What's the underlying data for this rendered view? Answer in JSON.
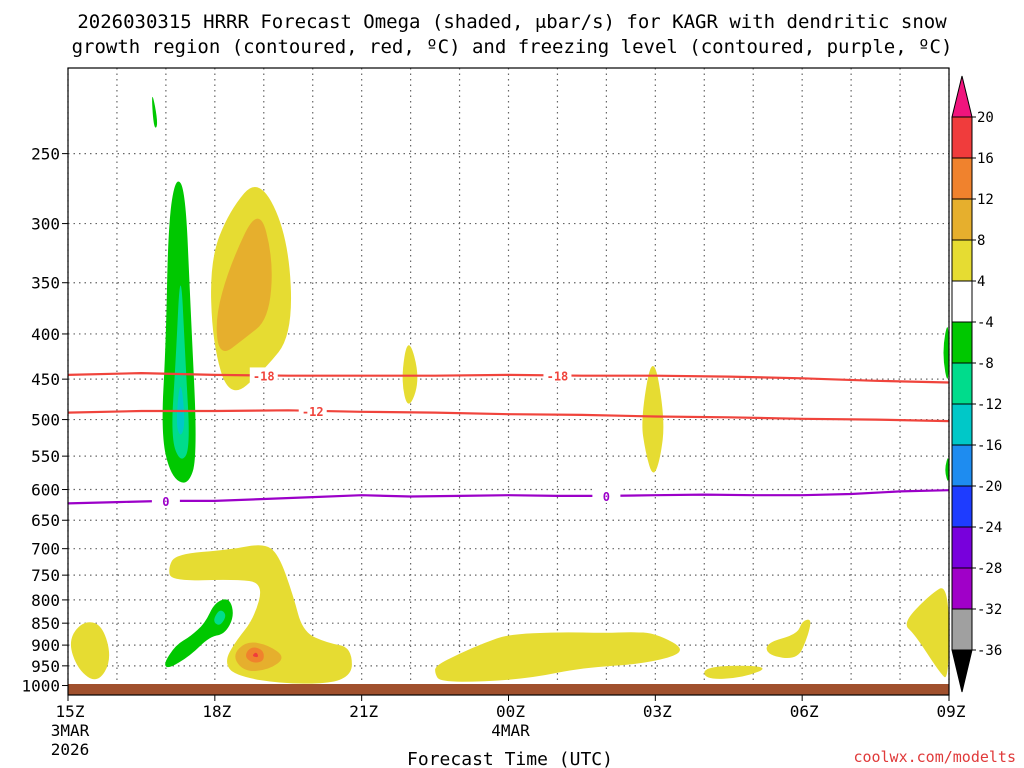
{
  "chart_data": {
    "type": "time-height cross-section",
    "title_line1": "2026030315 HRRR Forecast Omega (shaded, μbar/s) for KAGR with dendritic snow",
    "title_line2": "growth region (contoured, red, ºC) and freezing level (contoured, purple, ºC)",
    "xlabel": "Forecast Time (UTC)",
    "x_range_hours": [
      0,
      18
    ],
    "x_ticks": [
      {
        "hour": 0,
        "label": "15Z",
        "sub1": "3MAR",
        "sub2": "2026"
      },
      {
        "hour": 3,
        "label": "18Z",
        "sub1": "",
        "sub2": ""
      },
      {
        "hour": 6,
        "label": "21Z",
        "sub1": "",
        "sub2": ""
      },
      {
        "hour": 9,
        "label": "00Z",
        "sub1": "4MAR",
        "sub2": ""
      },
      {
        "hour": 12,
        "label": "03Z",
        "sub1": "",
        "sub2": ""
      },
      {
        "hour": 15,
        "label": "06Z",
        "sub1": "",
        "sub2": ""
      },
      {
        "hour": 18,
        "label": "09Z",
        "sub1": "",
        "sub2": ""
      }
    ],
    "y_range_mb": [
      1025,
      200
    ],
    "y_ticks": [
      250,
      300,
      350,
      400,
      450,
      500,
      550,
      600,
      650,
      700,
      750,
      800,
      850,
      900,
      950,
      1000
    ],
    "colorbar": {
      "levels": [
        20,
        16,
        12,
        8,
        4,
        -4,
        -8,
        -12,
        -16,
        -20,
        -24,
        -28,
        -32,
        -36
      ],
      "segments": [
        {
          "from": 16,
          "to": 20,
          "color": "#f03c3c"
        },
        {
          "from": 12,
          "to": 16,
          "color": "#f0822d"
        },
        {
          "from": 8,
          "to": 12,
          "color": "#e6af2d"
        },
        {
          "from": 4,
          "to": 8,
          "color": "#e6dc32"
        },
        {
          "from": -4,
          "to": 4,
          "color": "#ffffff"
        },
        {
          "from": -8,
          "to": -4,
          "color": "#00c800"
        },
        {
          "from": -12,
          "to": -8,
          "color": "#00dc8c"
        },
        {
          "from": -16,
          "to": -12,
          "color": "#00c8c8"
        },
        {
          "from": -20,
          "to": -16,
          "color": "#1e8cf0"
        },
        {
          "from": -24,
          "to": -20,
          "color": "#1e3cff"
        },
        {
          "from": -28,
          "to": -24,
          "color": "#7800dc"
        },
        {
          "from": -32,
          "to": -28,
          "color": "#a000c8"
        },
        {
          "from": -36,
          "to": -32,
          "color": "#a0a0a0"
        }
      ],
      "top_arrow_color": "#f0147d",
      "bottom_arrow_color": "#000000"
    },
    "contours": [
      {
        "name": "-18C",
        "label": "-18",
        "color": "#f0443c",
        "points": [
          [
            0,
            445
          ],
          [
            1.5,
            443
          ],
          [
            3,
            445
          ],
          [
            4.5,
            446
          ],
          [
            6,
            446
          ],
          [
            7.5,
            446
          ],
          [
            9,
            445
          ],
          [
            10.5,
            446
          ],
          [
            12,
            446
          ],
          [
            13.5,
            447
          ],
          [
            15,
            449
          ],
          [
            16.5,
            452
          ],
          [
            18,
            454
          ]
        ],
        "label_hours": [
          4,
          10
        ]
      },
      {
        "name": "-12C",
        "label": "-12",
        "color": "#f0443c",
        "points": [
          [
            0,
            491
          ],
          [
            1.5,
            489
          ],
          [
            3,
            489
          ],
          [
            4.5,
            488
          ],
          [
            6,
            490
          ],
          [
            7.5,
            491
          ],
          [
            9,
            493
          ],
          [
            10.5,
            494
          ],
          [
            12,
            496
          ],
          [
            13.5,
            497
          ],
          [
            15,
            499
          ],
          [
            16.5,
            500
          ],
          [
            18,
            502
          ]
        ],
        "label_hours": [
          5
        ]
      },
      {
        "name": "freezing-level",
        "label": "0",
        "color": "#9b00c8",
        "points": [
          [
            0,
            622
          ],
          [
            1,
            620
          ],
          [
            2,
            618
          ],
          [
            3,
            618
          ],
          [
            4,
            615
          ],
          [
            5,
            612
          ],
          [
            6,
            609
          ],
          [
            7,
            611
          ],
          [
            8,
            610
          ],
          [
            9,
            609
          ],
          [
            10,
            610
          ],
          [
            11,
            610
          ],
          [
            12,
            609
          ],
          [
            13,
            608
          ],
          [
            14,
            609
          ],
          [
            15,
            609
          ],
          [
            16,
            607
          ],
          [
            17,
            603
          ],
          [
            18,
            601
          ]
        ],
        "label_hours": [
          2,
          11
        ]
      }
    ],
    "omega_regions": [
      {
        "color": "#e6dc32",
        "pts": [
          [
            0,
            890
          ],
          [
            0.3,
            845
          ],
          [
            0.7,
            852
          ],
          [
            0.9,
            935
          ],
          [
            0.6,
            995
          ],
          [
            0.2,
            960
          ]
        ]
      },
      {
        "color": "#00c800",
        "pts": [
          [
            1.75,
            235
          ],
          [
            1.7,
            210
          ],
          [
            1.85,
            232
          ]
        ]
      },
      {
        "color": "#00c800",
        "pts": [
          [
            1.9,
            520
          ],
          [
            2.0,
            410
          ],
          [
            2.05,
            300
          ],
          [
            2.2,
            265
          ],
          [
            2.4,
            275
          ],
          [
            2.5,
            370
          ],
          [
            2.65,
            550
          ],
          [
            2.45,
            595
          ],
          [
            2.1,
            580
          ]
        ]
      },
      {
        "color": "#00dc8c",
        "pts": [
          [
            2.1,
            525
          ],
          [
            2.2,
            430
          ],
          [
            2.3,
            330
          ],
          [
            2.4,
            430
          ],
          [
            2.5,
            540
          ],
          [
            2.3,
            560
          ]
        ]
      },
      {
        "color": "#00c8c8",
        "pts": [
          [
            2.2,
            505
          ],
          [
            2.3,
            445
          ],
          [
            2.4,
            505
          ],
          [
            2.3,
            525
          ]
        ]
      },
      {
        "color": "#e6dc32",
        "pts": [
          [
            2.9,
            330
          ],
          [
            3.3,
            290
          ],
          [
            3.9,
            265
          ],
          [
            4.5,
            310
          ],
          [
            4.6,
            400
          ],
          [
            4.0,
            440
          ],
          [
            3.3,
            475
          ],
          [
            2.95,
            410
          ]
        ]
      },
      {
        "color": "#e6af2d",
        "pts": [
          [
            3.0,
            385
          ],
          [
            3.3,
            335
          ],
          [
            3.9,
            285
          ],
          [
            4.2,
            330
          ],
          [
            4.1,
            385
          ],
          [
            3.6,
            405
          ],
          [
            3.1,
            425
          ]
        ]
      },
      {
        "color": "#e6dc32",
        "pts": [
          [
            2.05,
            735
          ],
          [
            2.2,
            710
          ],
          [
            3.3,
            702
          ],
          [
            4.0,
            690
          ],
          [
            4.3,
            710
          ],
          [
            4.6,
            790
          ],
          [
            4.8,
            870
          ],
          [
            5.3,
            895
          ],
          [
            5.8,
            905
          ],
          [
            5.8,
            990
          ],
          [
            4.5,
            998
          ],
          [
            3.4,
            975
          ],
          [
            3.2,
            940
          ],
          [
            3.4,
            895
          ],
          [
            3.8,
            840
          ],
          [
            4.0,
            765
          ],
          [
            3.4,
            758
          ],
          [
            2.1,
            762
          ]
        ]
      },
      {
        "color": "#00c800",
        "pts": [
          [
            1.95,
            945
          ],
          [
            2.2,
            900
          ],
          [
            2.5,
            880
          ],
          [
            2.8,
            850
          ],
          [
            3.0,
            805
          ],
          [
            3.3,
            795
          ],
          [
            3.4,
            835
          ],
          [
            3.2,
            875
          ],
          [
            2.9,
            880
          ],
          [
            2.5,
            925
          ],
          [
            2.05,
            958
          ]
        ]
      },
      {
        "color": "#00dc8c",
        "pts": [
          [
            2.95,
            845
          ],
          [
            3.1,
            818
          ],
          [
            3.25,
            832
          ],
          [
            3.1,
            858
          ]
        ]
      },
      {
        "color": "#e6af2d",
        "pts": [
          [
            3.35,
            925
          ],
          [
            3.65,
            890
          ],
          [
            4.1,
            900
          ],
          [
            4.45,
            930
          ],
          [
            4.1,
            960
          ],
          [
            3.6,
            965
          ]
        ]
      },
      {
        "color": "#f0822d",
        "pts": [
          [
            3.6,
            925
          ],
          [
            3.75,
            902
          ],
          [
            4.0,
            912
          ],
          [
            4.0,
            940
          ],
          [
            3.75,
            943
          ]
        ]
      },
      {
        "color": "#f03c3c",
        "pts": [
          [
            3.75,
            926
          ],
          [
            3.85,
            915
          ],
          [
            3.9,
            930
          ]
        ]
      },
      {
        "color": "#e6dc32",
        "pts": [
          [
            6.8,
            450
          ],
          [
            6.95,
            400
          ],
          [
            7.2,
            450
          ],
          [
            6.95,
            490
          ]
        ]
      },
      {
        "color": "#e6dc32",
        "pts": [
          [
            7.5,
            950
          ],
          [
            8.0,
            920
          ],
          [
            8.5,
            895
          ],
          [
            9.0,
            875
          ],
          [
            10.0,
            870
          ],
          [
            11.0,
            872
          ],
          [
            11.5,
            870
          ],
          [
            12.0,
            872
          ],
          [
            12.7,
            915
          ],
          [
            11.8,
            945
          ],
          [
            10.5,
            955
          ],
          [
            9.5,
            980
          ],
          [
            8.5,
            990
          ],
          [
            7.6,
            990
          ],
          [
            7.5,
            970
          ]
        ]
      },
      {
        "color": "#e6dc32",
        "pts": [
          [
            11.7,
            500
          ],
          [
            11.95,
            415
          ],
          [
            12.2,
            500
          ],
          [
            12.1,
            555
          ],
          [
            11.95,
            582
          ],
          [
            11.8,
            545
          ]
        ]
      },
      {
        "color": "#e6dc32",
        "pts": [
          [
            13.0,
            950
          ],
          [
            14.4,
            950
          ],
          [
            13.8,
            980
          ],
          [
            13.0,
            985
          ]
        ]
      },
      {
        "color": "#e6dc32",
        "pts": [
          [
            14.25,
            895
          ],
          [
            14.9,
            875
          ],
          [
            15.0,
            845
          ],
          [
            15.2,
            840
          ],
          [
            15.1,
            885
          ],
          [
            14.9,
            935
          ],
          [
            14.3,
            925
          ]
        ]
      },
      {
        "color": "#e6dc32",
        "pts": [
          [
            18.0,
            765
          ],
          [
            17.6,
            790
          ],
          [
            17.05,
            850
          ],
          [
            17.3,
            875
          ],
          [
            17.8,
            965
          ],
          [
            18.0,
            990
          ]
        ]
      },
      {
        "color": "#00c800",
        "pts": [
          [
            17.85,
            420
          ],
          [
            18.0,
            380
          ],
          [
            18.0,
            465
          ]
        ]
      },
      {
        "color": "#00c800",
        "pts": [
          [
            17.9,
            570
          ],
          [
            18.0,
            545
          ],
          [
            18.0,
            595
          ]
        ]
      }
    ]
  },
  "credit": "coolwx.com/modelts"
}
